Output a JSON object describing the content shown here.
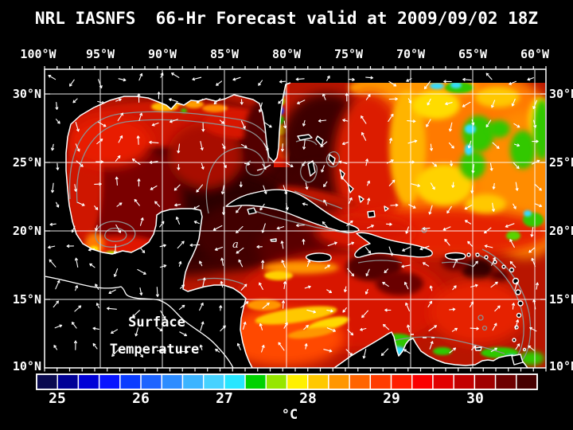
{
  "title": "NRL IASNFS  66-Hr Forecast valid at 2009/09/02 18Z",
  "map": {
    "top_axis": [
      "100°W",
      "95°W",
      "90°W",
      "85°W",
      "80°W",
      "75°W",
      "70°W",
      "65°W",
      "60°W"
    ],
    "left_axis": [
      "30°N",
      "25°N",
      "20°N",
      "15°N",
      "10°N"
    ],
    "right_axis": [
      "30°N",
      "25°N",
      "20°N",
      "15°N",
      "10°N"
    ],
    "overlay": {
      "line1": "Surface",
      "line2": "Temperature",
      "contour_label": "a"
    }
  },
  "colorbar": {
    "ticks": [
      "25",
      "26",
      "27",
      "28",
      "29",
      "30"
    ],
    "unit": "°C",
    "range_c": [
      24.75,
      30.75
    ],
    "step_c": 0.25,
    "colors": [
      "#0a0a50",
      "#000096",
      "#0000d7",
      "#0814ff",
      "#0a3cff",
      "#1e64ff",
      "#2d8cff",
      "#3cb4ff",
      "#46d2ff",
      "#28e6ff",
      "#00d200",
      "#96e600",
      "#fff000",
      "#ffc800",
      "#ff9600",
      "#ff6400",
      "#ff3c00",
      "#ff1e00",
      "#fa0000",
      "#e10000",
      "#c30000",
      "#a00000",
      "#6e0000",
      "#460000"
    ]
  },
  "theme": {
    "background": "#000000",
    "text": "#ffffff",
    "grid": "#ffffff",
    "coastline": "#ffffff",
    "contour": "#8f8f8f",
    "land": "#000000",
    "vector_arrows": "#ffffff"
  }
}
